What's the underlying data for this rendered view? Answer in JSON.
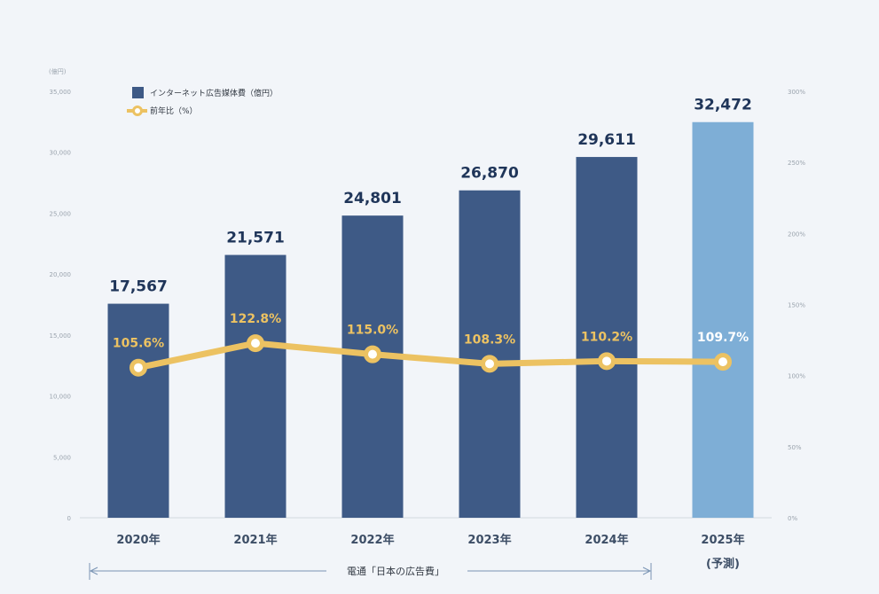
{
  "chart_data": {
    "type": "bar",
    "categories": [
      "2020年",
      "2021年",
      "2022年",
      "2023年",
      "2024年",
      "2025年"
    ],
    "category_notes": [
      "",
      "",
      "",
      "",
      "",
      "(予測)"
    ],
    "series": [
      {
        "name": "インターネット広告媒体費（億円）",
        "type": "bar",
        "axis": "left",
        "values": [
          17567,
          21571,
          24801,
          26870,
          29611,
          32472
        ],
        "labels": [
          "17,567",
          "21,571",
          "24,801",
          "26,870",
          "29,611",
          "32,472"
        ],
        "color": "#3e5a86",
        "forecast_color": "#7eaed6",
        "forecast_index": 5
      },
      {
        "name": "前年比（%）",
        "type": "line",
        "axis": "right",
        "values": [
          105.6,
          122.8,
          115.0,
          108.3,
          110.2,
          109.7
        ],
        "labels": [
          "105.6%",
          "122.8%",
          "115.0%",
          "108.3%",
          "110.2%",
          "109.7%"
        ],
        "color": "#ecc262"
      }
    ],
    "y_left": {
      "unit": "(億円)",
      "ylim": [
        0,
        35000
      ],
      "ticks": [
        0,
        5000,
        10000,
        15000,
        20000,
        25000,
        30000,
        35000
      ],
      "tick_labels": [
        "0",
        "5,000",
        "10,000",
        "15,000",
        "20,000",
        "25,000",
        "30,000",
        "35,000"
      ]
    },
    "y_right": {
      "ylim": [
        0,
        300
      ],
      "ticks": [
        0,
        50,
        100,
        150,
        200,
        250,
        300
      ],
      "tick_labels": [
        "0%",
        "50%",
        "100%",
        "150%",
        "200%",
        "250%",
        "300%"
      ]
    },
    "source": "電通「日本の広告費」",
    "grid": false,
    "legend_position": "top-left"
  }
}
